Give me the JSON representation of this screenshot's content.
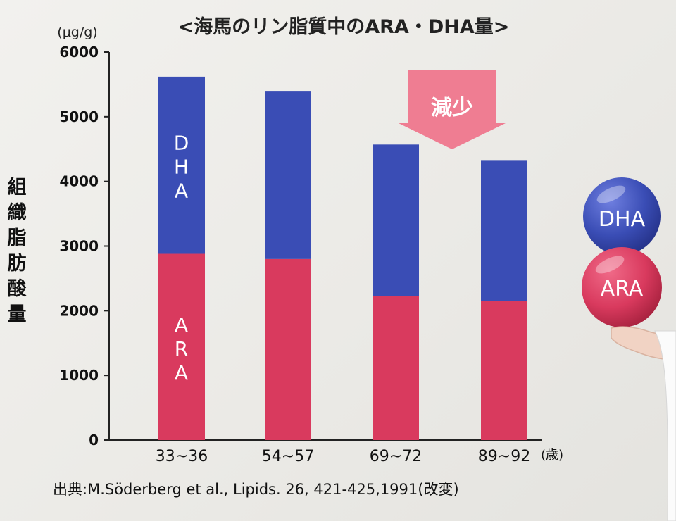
{
  "chart_data": {
    "type": "bar",
    "stacked": true,
    "title": "<海馬のリン脂質中のARA・DHA量>",
    "unit_label": "(μg/g)",
    "ylabel": "組織脂肪酸量",
    "xunit": "(歳)",
    "ylim": [
      0,
      6000
    ],
    "yticks": [
      0,
      1000,
      2000,
      3000,
      4000,
      5000,
      6000
    ],
    "categories": [
      "33~36",
      "54~57",
      "69~72",
      "89~92"
    ],
    "series": [
      {
        "name": "ARA",
        "color": "#d93a5e",
        "values": [
          2880,
          2800,
          2230,
          2150
        ]
      },
      {
        "name": "DHA",
        "color": "#3a4db5",
        "values": [
          2740,
          2600,
          2340,
          2180
        ]
      }
    ],
    "segment_labels": {
      "dha": [
        "D",
        "H",
        "A"
      ],
      "ara": [
        "A",
        "R",
        "A"
      ]
    },
    "annotation": "減少",
    "legend": [
      {
        "name": "DHA",
        "color": "#3a4db5"
      },
      {
        "name": "ARA",
        "color": "#d93a5e"
      }
    ],
    "source": "出典:M.Söderberg et al., Lipids. 26, 421-425,1991(改変)",
    "grid": false
  }
}
